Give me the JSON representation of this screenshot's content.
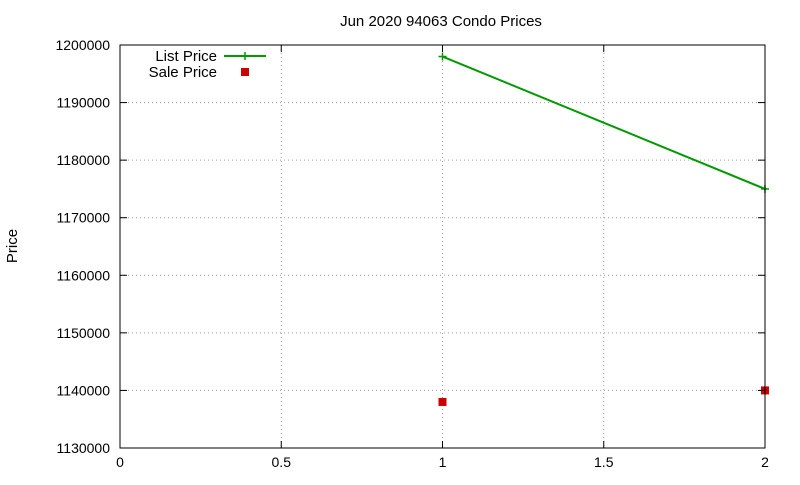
{
  "chart_data": {
    "type": "line",
    "title": "Jun 2020 94063 Condo Prices",
    "xlabel": "",
    "ylabel": "Price",
    "xlim": [
      0,
      2
    ],
    "ylim": [
      1130000,
      1200000
    ],
    "xticks": [
      0,
      0.5,
      1,
      1.5,
      2
    ],
    "xtick_labels": [
      "0",
      "0.5",
      "1",
      "1.5",
      "2"
    ],
    "yticks": [
      1130000,
      1140000,
      1150000,
      1160000,
      1170000,
      1180000,
      1190000,
      1200000
    ],
    "ytick_labels": [
      "1130000",
      "1140000",
      "1150000",
      "1160000",
      "1170000",
      "1180000",
      "1190000",
      "1200000"
    ],
    "grid": true,
    "legend_position": "top-left",
    "series": [
      {
        "name": "List Price",
        "style": "line-with-plus-markers",
        "color": "#009900",
        "points": [
          [
            1,
            1198000
          ],
          [
            2,
            1175000
          ]
        ]
      },
      {
        "name": "Sale Price",
        "style": "square-markers",
        "color": "#cc0000",
        "points": [
          [
            1,
            1138000
          ],
          [
            2,
            1140000
          ]
        ]
      }
    ]
  }
}
